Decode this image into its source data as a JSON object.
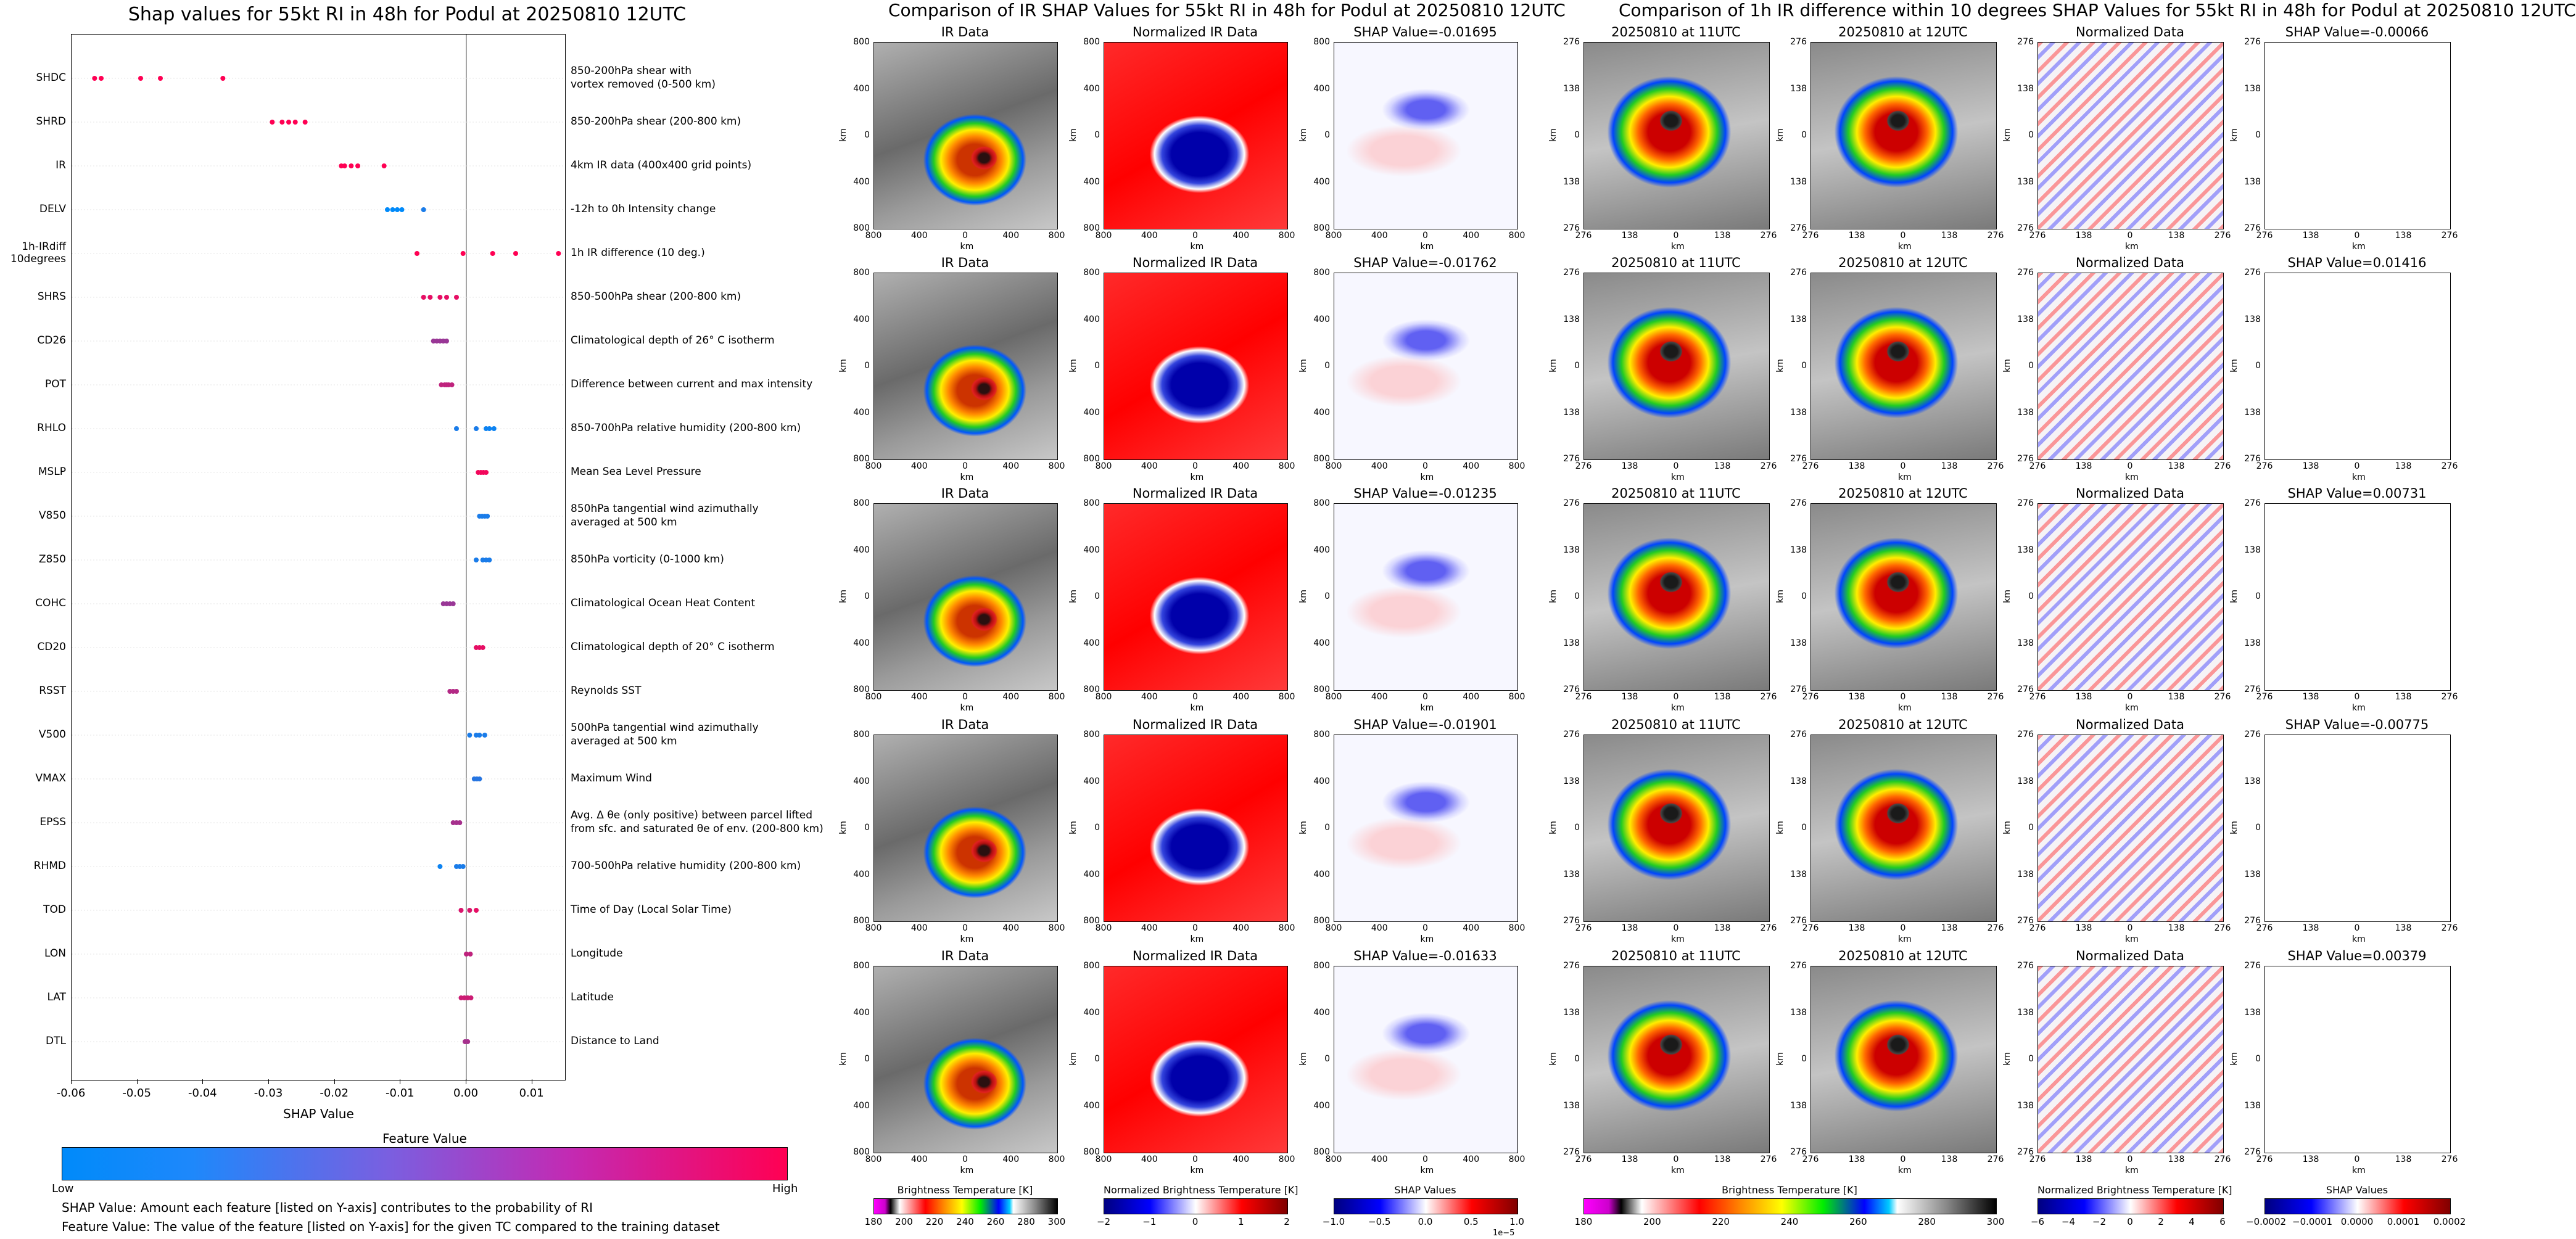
{
  "summary": {
    "title": "Shap values for 55kt RI in 48h for Podul at 20250810 12UTC",
    "xlabel": "SHAP Value",
    "xticks": [
      "-0.06",
      "-0.05",
      "-0.04",
      "-0.03",
      "-0.02",
      "-0.01",
      "0.00",
      "0.01"
    ],
    "colorbar_title": "Feature Value",
    "colorbar_low": "Low",
    "colorbar_high": "High",
    "note1": "SHAP Value: Amount each feature [listed on Y-axis] contributes to the probability of RI",
    "note2": "Feature Value: The value of the feature [listed on Y-axis] for the given TC compared to the training dataset"
  },
  "chart_data": {
    "type": "scatter",
    "xlim": [
      -0.06,
      0.015
    ],
    "features": [
      {
        "label": "SHDC",
        "desc": [
          "850-200hPa shear with",
          "vortex removed (0-500 km)"
        ],
        "points": [
          [
            -0.0565,
            1.0
          ],
          [
            -0.0555,
            1.0
          ],
          [
            -0.0495,
            1.0
          ],
          [
            -0.0465,
            1.0
          ],
          [
            -0.037,
            1.0
          ]
        ]
      },
      {
        "label": "SHRD",
        "desc": [
          "850-200hPa shear (200-800 km)"
        ],
        "points": [
          [
            -0.0295,
            1.0
          ],
          [
            -0.028,
            1.0
          ],
          [
            -0.027,
            1.0
          ],
          [
            -0.026,
            1.0
          ],
          [
            -0.0245,
            1.0
          ]
        ]
      },
      {
        "label": "IR",
        "desc": [
          "4km IR data (400x400 grid points)"
        ],
        "points": [
          [
            -0.019,
            1.0
          ],
          [
            -0.0185,
            1.0
          ],
          [
            -0.0175,
            1.0
          ],
          [
            -0.0165,
            1.0
          ],
          [
            -0.0125,
            1.0
          ]
        ]
      },
      {
        "label": "DELV",
        "desc": [
          "-12h to 0h Intensity change"
        ],
        "points": [
          [
            -0.012,
            0.0
          ],
          [
            -0.0112,
            0.0
          ],
          [
            -0.0105,
            0.0
          ],
          [
            -0.0098,
            0.0
          ],
          [
            -0.0065,
            0.1
          ]
        ]
      },
      {
        "label": "1h-IRdiff\n10degrees",
        "desc": [
          "1h IR difference (10 deg.)"
        ],
        "points": [
          [
            -0.0075,
            1.0
          ],
          [
            -0.0005,
            1.0
          ],
          [
            0.004,
            1.0
          ],
          [
            0.0075,
            1.0
          ],
          [
            0.014,
            1.0
          ]
        ]
      },
      {
        "label": "SHRS",
        "desc": [
          "850-500hPa shear (200-800 km)"
        ],
        "points": [
          [
            -0.0065,
            0.9
          ],
          [
            -0.0055,
            0.9
          ],
          [
            -0.004,
            0.9
          ],
          [
            -0.003,
            0.9
          ],
          [
            -0.0015,
            0.9
          ]
        ]
      },
      {
        "label": "CD26",
        "desc": [
          "Climatological depth of 26° C isotherm"
        ],
        "points": [
          [
            -0.005,
            0.6
          ],
          [
            -0.0045,
            0.6
          ],
          [
            -0.004,
            0.6
          ],
          [
            -0.0035,
            0.6
          ],
          [
            -0.003,
            0.6
          ]
        ]
      },
      {
        "label": "POT",
        "desc": [
          "Difference between current and max intensity"
        ],
        "points": [
          [
            -0.0038,
            0.75
          ],
          [
            -0.0033,
            0.75
          ],
          [
            -0.003,
            0.75
          ],
          [
            -0.0027,
            0.75
          ],
          [
            -0.0022,
            0.75
          ]
        ]
      },
      {
        "label": "RHLO",
        "desc": [
          "850-700hPa relative humidity (200-800 km)"
        ],
        "points": [
          [
            -0.0015,
            0.1
          ],
          [
            0.0015,
            0.1
          ],
          [
            0.003,
            0.05
          ],
          [
            0.0035,
            0.05
          ],
          [
            0.0042,
            0.05
          ]
        ]
      },
      {
        "label": "MSLP",
        "desc": [
          "Mean Sea Level Pressure"
        ],
        "points": [
          [
            0.0018,
            0.95
          ],
          [
            0.0022,
            0.95
          ],
          [
            0.0026,
            0.95
          ],
          [
            0.003,
            0.95
          ]
        ]
      },
      {
        "label": "V850",
        "desc": [
          "850hPa tangential wind azimuthally",
          "averaged at 500 km"
        ],
        "points": [
          [
            0.002,
            0.1
          ],
          [
            0.0024,
            0.1
          ],
          [
            0.0028,
            0.1
          ],
          [
            0.0032,
            0.1
          ]
        ]
      },
      {
        "label": "Z850",
        "desc": [
          "850hPa vorticity (0-1000 km)"
        ],
        "points": [
          [
            0.0015,
            0.1
          ],
          [
            0.0025,
            0.1
          ],
          [
            0.003,
            0.1
          ],
          [
            0.0035,
            0.1
          ]
        ]
      },
      {
        "label": "COHC",
        "desc": [
          "Climatological Ocean Heat Content"
        ],
        "points": [
          [
            -0.0035,
            0.6
          ],
          [
            -0.003,
            0.6
          ],
          [
            -0.0025,
            0.6
          ],
          [
            -0.002,
            0.6
          ]
        ]
      },
      {
        "label": "CD20",
        "desc": [
          "Climatological depth of 20° C isotherm"
        ],
        "points": [
          [
            0.0015,
            0.9
          ],
          [
            0.002,
            0.9
          ],
          [
            0.0025,
            0.9
          ]
        ]
      },
      {
        "label": "RSST",
        "desc": [
          "Reynolds SST"
        ],
        "points": [
          [
            -0.0025,
            0.7
          ],
          [
            -0.002,
            0.7
          ],
          [
            -0.0015,
            0.7
          ]
        ]
      },
      {
        "label": "V500",
        "desc": [
          "500hPa tangential wind azimuthally",
          "averaged at 500 km"
        ],
        "points": [
          [
            0.0005,
            0.1
          ],
          [
            0.0015,
            0.1
          ],
          [
            0.002,
            0.1
          ],
          [
            0.0028,
            0.1
          ]
        ]
      },
      {
        "label": "VMAX",
        "desc": [
          "Maximum Wind"
        ],
        "points": [
          [
            0.0012,
            0.15
          ],
          [
            0.0016,
            0.15
          ],
          [
            0.002,
            0.15
          ]
        ]
      },
      {
        "label": "EPSS",
        "desc": [
          "Avg. Δ θe (only positive) between parcel lifted",
          "from sfc. and saturated θe of env. (200-800 km)"
        ],
        "points": [
          [
            -0.002,
            0.65
          ],
          [
            -0.0015,
            0.65
          ],
          [
            -0.001,
            0.65
          ]
        ]
      },
      {
        "label": "RHMD",
        "desc": [
          "700-500hPa relative humidity (200-800 km)"
        ],
        "points": [
          [
            -0.004,
            0.05
          ],
          [
            -0.0015,
            0.1
          ],
          [
            -0.001,
            0.1
          ],
          [
            -0.0005,
            0.1
          ]
        ]
      },
      {
        "label": "TOD",
        "desc": [
          "Time of Day (Local Solar Time)"
        ],
        "points": [
          [
            -0.0008,
            0.85
          ],
          [
            0.0005,
            0.85
          ],
          [
            0.0015,
            0.9
          ]
        ]
      },
      {
        "label": "LON",
        "desc": [
          "Longitude"
        ],
        "points": [
          [
            0.0,
            0.75
          ],
          [
            0.0006,
            0.75
          ]
        ]
      },
      {
        "label": "LAT",
        "desc": [
          "Latitude"
        ],
        "points": [
          [
            -0.0008,
            0.8
          ],
          [
            -0.0003,
            0.8
          ],
          [
            0.0002,
            0.8
          ],
          [
            0.0007,
            0.8
          ]
        ]
      },
      {
        "label": "DTL",
        "desc": [
          "Distance to Land"
        ],
        "points": [
          [
            -0.0002,
            0.65
          ],
          [
            0.0002,
            0.65
          ]
        ]
      }
    ]
  },
  "ir_section": {
    "title": "Comparison of IR SHAP Values for 55kt RI in 48h for Podul at 20250810 12UTC",
    "col_titles": [
      "IR Data",
      "Normalized IR Data"
    ],
    "shap_titles": [
      "SHAP Value=-0.01695",
      "SHAP Value=-0.01762",
      "SHAP Value=-0.01235",
      "SHAP Value=-0.01901",
      "SHAP Value=-0.01633"
    ],
    "yticks": [
      "800",
      "400",
      "0",
      "400",
      "800"
    ],
    "xticks": [
      "800",
      "400",
      "0",
      "400",
      "800"
    ],
    "axis_label": "km",
    "cbar_labels": [
      "Brightness Temperature [K]",
      "Normalized Brightness Temperature [K]",
      "SHAP Values"
    ],
    "cbar1_ticks": [
      "180",
      "200",
      "220",
      "240",
      "260",
      "280",
      "300"
    ],
    "cbar2_ticks": [
      "−2",
      "−1",
      "0",
      "1",
      "2"
    ],
    "cbar3_ticks": [
      "−1.0",
      "−0.5",
      "0.0",
      "0.5",
      "1.0"
    ],
    "cbar3_exp": "1e−5"
  },
  "diff_section": {
    "title": "Comparison of 1h IR difference within 10 degrees SHAP Values for 55kt RI in 48h for Podul at 20250810 12UTC",
    "col_titles": [
      "20250810 at 11UTC",
      "20250810 at 12UTC",
      "Normalized Data"
    ],
    "shap_titles": [
      "SHAP Value=-0.00066",
      "SHAP Value=0.01416",
      "SHAP Value=0.00731",
      "SHAP Value=-0.00775",
      "SHAP Value=0.00379"
    ],
    "yticks": [
      "276",
      "138",
      "0",
      "138",
      "276"
    ],
    "xticks": [
      "276",
      "138",
      "0",
      "138",
      "276"
    ],
    "axis_label": "km",
    "cbar_labels": [
      "Brightness Temperature [K]",
      "Normalized Brightness Temperature [K]",
      "SHAP Values"
    ],
    "cbar1_ticks": [
      "180",
      "200",
      "220",
      "240",
      "260",
      "280",
      "300"
    ],
    "cbar2_ticks": [
      "−6",
      "−4",
      "−2",
      "0",
      "2",
      "4",
      "6"
    ],
    "cbar3_ticks": [
      "−0.0002",
      "−0.0001",
      "0.0000",
      "0.0001",
      "0.0002"
    ]
  },
  "colors": {
    "low": "#008afa",
    "high": "#ff0053"
  }
}
